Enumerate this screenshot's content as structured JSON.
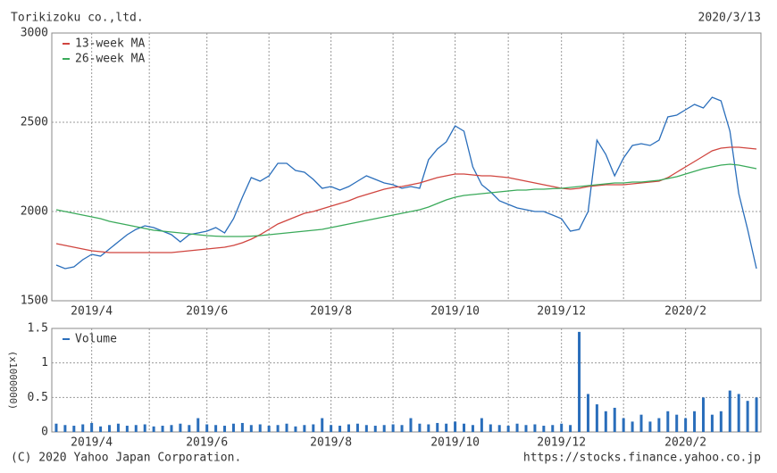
{
  "header": {
    "title": "Torikizoku co.,ltd.",
    "date": "2020/3/13"
  },
  "footer": {
    "copyright": "(C) 2020 Yahoo Japan Corporation.",
    "url": "https://stocks.finance.yahoo.co.jp"
  },
  "chart_data": [
    {
      "type": "line",
      "categories": [
        null,
        null,
        null,
        null,
        "2019/4",
        null,
        null,
        null,
        null,
        null,
        null,
        null,
        null,
        null,
        null,
        null,
        null,
        "2019/6",
        null,
        null,
        null,
        null,
        null,
        null,
        null,
        null,
        null,
        null,
        null,
        null,
        null,
        "2019/8",
        null,
        null,
        null,
        null,
        null,
        null,
        null,
        null,
        null,
        null,
        null,
        null,
        null,
        "2019/10",
        null,
        null,
        null,
        null,
        null,
        null,
        null,
        null,
        null,
        null,
        null,
        "2019/12",
        null,
        null,
        null,
        null,
        null,
        null,
        null,
        null,
        null,
        null,
        null,
        null,
        null,
        "2020/2",
        null,
        null,
        null,
        null,
        null,
        null,
        null,
        null
      ],
      "ylim": [
        1500,
        3000
      ],
      "yticks": [
        1500,
        2000,
        2500,
        3000
      ],
      "grid": true,
      "legend": "upper left",
      "series": [
        {
          "color": "#2a6ebb",
          "values": [
            1700,
            1680,
            1690,
            1730,
            1760,
            1750,
            1790,
            1830,
            1870,
            1900,
            1920,
            1910,
            1890,
            1870,
            1830,
            1870,
            1880,
            1890,
            1910,
            1880,
            1960,
            2080,
            2190,
            2170,
            2200,
            2270,
            2270,
            2230,
            2220,
            2180,
            2130,
            2140,
            2120,
            2140,
            2170,
            2200,
            2180,
            2160,
            2150,
            2130,
            2140,
            2130,
            2290,
            2350,
            2390,
            2480,
            2450,
            2250,
            2150,
            2110,
            2060,
            2040,
            2020,
            2010,
            2000,
            2000,
            1980,
            1960,
            1890,
            1900,
            2000,
            2400,
            2320,
            2200,
            2300,
            2370,
            2380,
            2370,
            2400,
            2530,
            2540,
            2570,
            2600,
            2580,
            2640,
            2620,
            2450,
            2100,
            1900,
            1680
          ]
        },
        {
          "name": "13-week MA",
          "color": "#d0453f",
          "values": [
            1820,
            1810,
            1800,
            1790,
            1780,
            1775,
            1770,
            1770,
            1770,
            1770,
            1770,
            1770,
            1770,
            1770,
            1775,
            1780,
            1785,
            1790,
            1795,
            1800,
            1810,
            1825,
            1845,
            1870,
            1900,
            1930,
            1950,
            1970,
            1990,
            2000,
            2015,
            2030,
            2045,
            2060,
            2080,
            2095,
            2110,
            2125,
            2135,
            2140,
            2150,
            2160,
            2175,
            2190,
            2200,
            2210,
            2210,
            2205,
            2200,
            2200,
            2195,
            2190,
            2180,
            2170,
            2160,
            2150,
            2140,
            2130,
            2125,
            2130,
            2140,
            2145,
            2150,
            2150,
            2150,
            2155,
            2160,
            2165,
            2170,
            2190,
            2220,
            2250,
            2280,
            2310,
            2340,
            2355,
            2360,
            2360,
            2355,
            2350
          ]
        },
        {
          "name": "26-week MA",
          "color": "#3aaa5a",
          "values": [
            2010,
            2000,
            1990,
            1980,
            1970,
            1960,
            1945,
            1935,
            1925,
            1915,
            1905,
            1895,
            1890,
            1885,
            1880,
            1875,
            1870,
            1865,
            1862,
            1860,
            1860,
            1860,
            1862,
            1865,
            1870,
            1875,
            1880,
            1885,
            1890,
            1895,
            1900,
            1910,
            1920,
            1930,
            1940,
            1950,
            1960,
            1970,
            1980,
            1990,
            2000,
            2010,
            2025,
            2045,
            2065,
            2080,
            2090,
            2095,
            2100,
            2105,
            2110,
            2115,
            2120,
            2120,
            2125,
            2125,
            2128,
            2130,
            2135,
            2140,
            2145,
            2150,
            2155,
            2160,
            2160,
            2165,
            2165,
            2170,
            2175,
            2185,
            2195,
            2210,
            2225,
            2240,
            2250,
            2260,
            2265,
            2260,
            2250,
            2240
          ]
        }
      ]
    },
    {
      "type": "bar",
      "ylabel": "(x1000000)",
      "categories": [
        null,
        null,
        null,
        null,
        "2019/4",
        null,
        null,
        null,
        null,
        null,
        null,
        null,
        null,
        null,
        null,
        null,
        null,
        "2019/6",
        null,
        null,
        null,
        null,
        null,
        null,
        null,
        null,
        null,
        null,
        null,
        null,
        null,
        "2019/8",
        null,
        null,
        null,
        null,
        null,
        null,
        null,
        null,
        null,
        null,
        null,
        null,
        null,
        "2019/10",
        null,
        null,
        null,
        null,
        null,
        null,
        null,
        null,
        null,
        null,
        null,
        "2019/12",
        null,
        null,
        null,
        null,
        null,
        null,
        null,
        null,
        null,
        null,
        null,
        null,
        null,
        "2020/2",
        null,
        null,
        null,
        null,
        null,
        null,
        null,
        null
      ],
      "ylim": [
        0,
        1.5
      ],
      "yticks": [
        0,
        0.5,
        1,
        1.5
      ],
      "grid": true,
      "legend": "upper left",
      "series": [
        {
          "name": "Volume",
          "color": "#2a6ebb",
          "values": [
            0.12,
            0.1,
            0.09,
            0.11,
            0.13,
            0.08,
            0.1,
            0.12,
            0.09,
            0.1,
            0.11,
            0.08,
            0.09,
            0.1,
            0.12,
            0.1,
            0.2,
            0.11,
            0.1,
            0.09,
            0.12,
            0.13,
            0.1,
            0.11,
            0.09,
            0.1,
            0.12,
            0.08,
            0.1,
            0.11,
            0.2,
            0.1,
            0.09,
            0.11,
            0.12,
            0.1,
            0.09,
            0.1,
            0.11,
            0.1,
            0.2,
            0.12,
            0.11,
            0.13,
            0.12,
            0.15,
            0.12,
            0.1,
            0.2,
            0.11,
            0.1,
            0.09,
            0.12,
            0.1,
            0.11,
            0.09,
            0.1,
            0.12,
            0.1,
            1.45,
            0.55,
            0.4,
            0.3,
            0.35,
            0.2,
            0.15,
            0.25,
            0.15,
            0.2,
            0.3,
            0.25,
            0.2,
            0.3,
            0.5,
            0.25,
            0.3,
            0.6,
            0.55,
            0.45,
            0.5
          ]
        }
      ]
    }
  ]
}
